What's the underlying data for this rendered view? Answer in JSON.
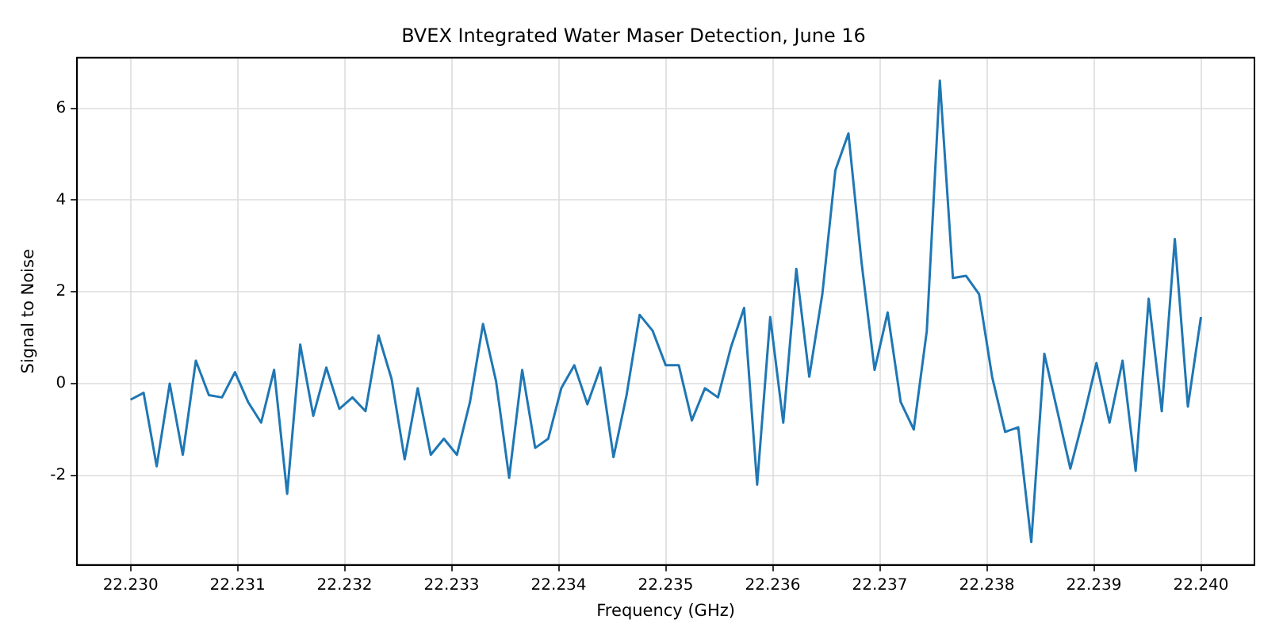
{
  "chart_data": {
    "type": "line",
    "title": "BVEX Integrated Water Maser Detection, June 16",
    "xlabel": "Frequency (GHz)",
    "ylabel": "Signal to Noise",
    "x": [
      22.23,
      22.230122,
      22.230244,
      22.230366,
      22.230488,
      22.23061,
      22.230732,
      22.230854,
      22.230976,
      22.231098,
      22.23122,
      22.231341,
      22.231463,
      22.231585,
      22.231707,
      22.231829,
      22.231951,
      22.232073,
      22.232195,
      22.232317,
      22.232439,
      22.232561,
      22.232683,
      22.232805,
      22.232927,
      22.233049,
      22.233171,
      22.233293,
      22.233415,
      22.233537,
      22.233659,
      22.23378,
      22.233902,
      22.234024,
      22.234146,
      22.234268,
      22.23439,
      22.234512,
      22.234634,
      22.234756,
      22.234878,
      22.235,
      22.235122,
      22.235244,
      22.235366,
      22.235488,
      22.23561,
      22.235732,
      22.235854,
      22.235976,
      22.236098,
      22.23622,
      22.236341,
      22.236463,
      22.236585,
      22.236707,
      22.236829,
      22.236951,
      22.237073,
      22.237195,
      22.237317,
      22.237439,
      22.237561,
      22.237683,
      22.237805,
      22.237927,
      22.238049,
      22.238171,
      22.238293,
      22.238415,
      22.238537,
      22.238659,
      22.23878,
      22.238902,
      22.239024,
      22.239146,
      22.239268,
      22.23939,
      22.239512,
      22.239634,
      22.239756,
      22.239878,
      22.24
    ],
    "series": [
      {
        "color": "#1f77b4",
        "values": [
          -0.35,
          -0.2,
          -1.8,
          0.0,
          -1.55,
          0.5,
          -0.25,
          -0.3,
          0.25,
          -0.4,
          -0.85,
          0.3,
          -2.4,
          0.85,
          -0.7,
          0.35,
          -0.55,
          -0.3,
          -0.6,
          1.05,
          0.1,
          -1.65,
          -0.1,
          -1.55,
          -1.2,
          -1.55,
          -0.4,
          1.3,
          0.05,
          -2.05,
          0.3,
          -1.4,
          -1.2,
          -0.1,
          0.4,
          -0.45,
          0.35,
          -1.6,
          -0.25,
          1.5,
          1.15,
          0.4,
          0.4,
          -0.8,
          -0.1,
          -0.3,
          0.8,
          1.65,
          -2.2,
          1.45,
          -0.85,
          2.5,
          0.15,
          1.95,
          4.65,
          5.45,
          2.65,
          0.3,
          1.55,
          -0.4,
          -1.0,
          1.15,
          6.6,
          2.3,
          2.35,
          1.95,
          0.15,
          -1.05,
          -0.95,
          -3.45,
          0.65,
          -0.6,
          -1.85,
          -0.75,
          0.45,
          -0.85,
          0.5,
          -1.9,
          1.85,
          -0.6,
          3.15,
          -0.5,
          1.45
        ]
      }
    ],
    "xlim": [
      22.2295,
      22.2405
    ],
    "xticks": [
      {
        "value": 22.23,
        "label": "22.230"
      },
      {
        "value": 22.231,
        "label": "22.231"
      },
      {
        "value": 22.232,
        "label": "22.232"
      },
      {
        "value": 22.233,
        "label": "22.233"
      },
      {
        "value": 22.234,
        "label": "22.234"
      },
      {
        "value": 22.235,
        "label": "22.235"
      },
      {
        "value": 22.236,
        "label": "22.236"
      },
      {
        "value": 22.237,
        "label": "22.237"
      },
      {
        "value": 22.238,
        "label": "22.238"
      },
      {
        "value": 22.239,
        "label": "22.239"
      },
      {
        "value": 22.24,
        "label": "22.240"
      }
    ],
    "ylim": [
      -3.95,
      7.1
    ],
    "yticks": [
      -2,
      0,
      2,
      4,
      6
    ],
    "grid": true,
    "line_style": "solid",
    "marker": "none",
    "legend": false
  }
}
